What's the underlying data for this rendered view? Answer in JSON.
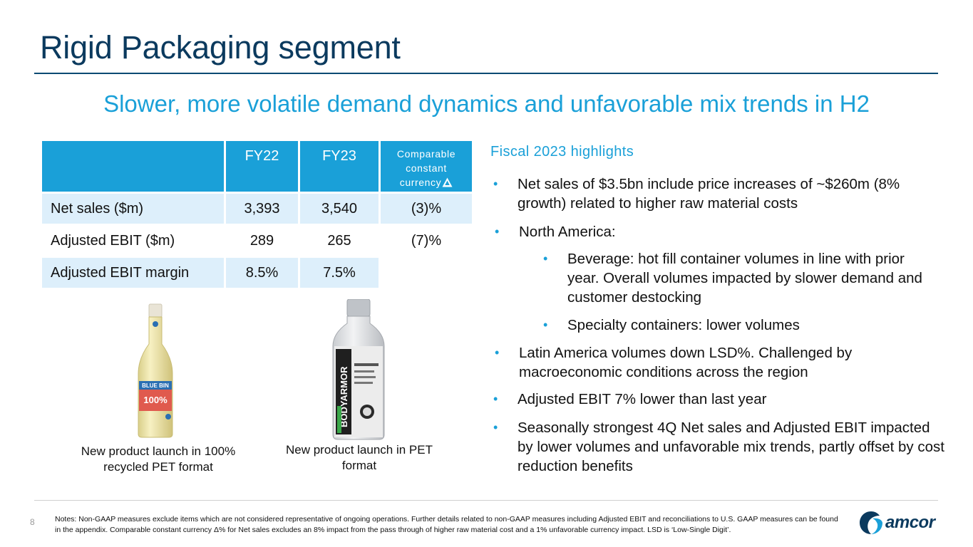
{
  "title": "Rigid Packaging segment",
  "subtitle": "Slower, more volatile demand dynamics and unfavorable mix trends in H2",
  "table": {
    "headers": [
      "",
      "FY22",
      "FY23",
      "Comparable constant currency"
    ],
    "rows": [
      {
        "label": "Net sales ($m)",
        "fy22": "3,393",
        "fy23": "3,540",
        "ccc": "(3)%"
      },
      {
        "label": "Adjusted EBIT ($m)",
        "fy22": "289",
        "fy23": "265",
        "ccc": "(7)%"
      },
      {
        "label": "Adjusted EBIT margin",
        "fy22": "8.5%",
        "fy23": "7.5%",
        "ccc": ""
      }
    ]
  },
  "images": {
    "bottle1_caption": "New product launch in 100% recycled PET format",
    "bottle2_caption": "New product launch in PET format",
    "bottle1_label_1": "BLUE BIN",
    "bottle1_label_2": "100%",
    "bottle2_label": "BODYARMOR"
  },
  "highlights": {
    "title": "Fiscal 2023 highlights",
    "items": [
      "Net sales of $3.5bn include price increases of ~$260m (8% growth) related to higher raw material costs",
      "North America:",
      "Beverage: hot fill container volumes in line with prior year.  Overall volumes impacted by slower demand and customer destocking",
      "Specialty containers: lower volumes",
      "Latin America volumes down LSD%. Challenged by macroeconomic conditions across the region",
      "Adjusted EBIT 7% lower than last year",
      "Seasonally strongest 4Q Net sales and Adjusted EBIT impacted by lower volumes and unfavorable mix trends, partly offset by cost reduction benefits"
    ],
    "bullet_char": "•"
  },
  "footer": {
    "page_number": "8",
    "notes": "Notes:  Non-GAAP measures exclude items which are not considered representative of ongoing operations.  Further details related to non-GAAP measures including Adjusted EBIT and reconciliations to U.S. GAAP measures can be found in the appendix. Comparable constant currency Δ% for Net sales excludes an 8% impact from the pass through of higher raw material cost and a 1% unfavorable currency impact. LSD is ‘Low-Single Digit’.",
    "logo_text": "amcor"
  },
  "colors": {
    "title": "#0b3a5e",
    "accent": "#1aa0d8",
    "table_shade": "#ddeffb"
  }
}
